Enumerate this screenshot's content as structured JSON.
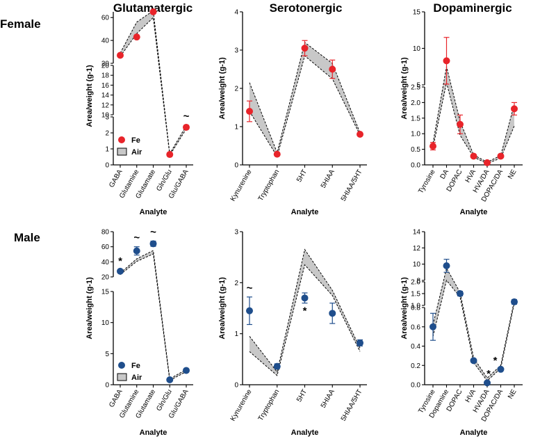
{
  "row_labels": {
    "female": "Female",
    "male": "Male"
  },
  "legend": {
    "fe": "Fe",
    "air": "Air"
  },
  "colors": {
    "female": "#e8242a",
    "male": "#1f4e8c",
    "band": "#c8c8c8",
    "axis": "#000000"
  },
  "chart_data": [
    {
      "id": "f-glut",
      "type": "scatter",
      "row": "female",
      "title": "Glutamatergic",
      "xlabel": "Analyte",
      "ylabel": "Area/weight (g-1)",
      "categories": [
        "GABA",
        "Glutamine",
        "Glutamate",
        "Gln/Glu",
        "Glu/GABA"
      ],
      "segments": [
        {
          "ylim": [
            0,
            3
          ],
          "ticks": [
            "0",
            "1",
            "2",
            "3"
          ]
        },
        {
          "ylim": [
            10,
            20
          ],
          "ticks": [
            "10",
            "12",
            "14",
            "16",
            "18",
            "20"
          ]
        },
        {
          "ylim": [
            20,
            65
          ],
          "ticks": [
            "20",
            "40",
            "60"
          ]
        }
      ],
      "fe": {
        "values": [
          27,
          43,
          65,
          0.65,
          2.35
        ],
        "err": [
          0,
          0,
          0,
          0.1,
          0.12
        ]
      },
      "air": {
        "lower": [
          26,
          46,
          60,
          0.6,
          2.25
        ],
        "upper": [
          29,
          56,
          66,
          0.7,
          2.45
        ]
      },
      "annotations": [
        {
          "text": "~",
          "index": 4
        }
      ],
      "legend_visible": true
    },
    {
      "id": "f-sero",
      "type": "scatter",
      "row": "female",
      "title": "Serotonergic",
      "xlabel": "Analyte",
      "ylabel": "Area/weight (g-1)",
      "categories": [
        "Kynurenine",
        "Tryptophan",
        "5HT",
        "5HIAA",
        "5HIAA/5HT"
      ],
      "segments": [
        {
          "ylim": [
            0,
            4
          ],
          "ticks": [
            "0",
            "1",
            "2",
            "3",
            "4"
          ]
        }
      ],
      "fe": {
        "values": [
          1.4,
          0.28,
          3.05,
          2.5,
          0.8
        ],
        "err": [
          0.27,
          0,
          0.2,
          0.24,
          0
        ]
      },
      "air": {
        "lower": [
          1.4,
          0.22,
          2.85,
          2.25,
          0.78
        ],
        "upper": [
          2.15,
          0.32,
          3.2,
          2.65,
          0.84
        ]
      },
      "annotations": [],
      "legend_visible": false
    },
    {
      "id": "f-dopa",
      "type": "scatter",
      "row": "female",
      "title": "Dopaminergic",
      "xlabel": "Analyte",
      "ylabel": "Area/weight (g-1)",
      "categories": [
        "Tyrosine",
        "DA",
        "DOPAC",
        "HVA",
        "HVA/DA",
        "DOPAC/DA",
        "NE"
      ],
      "segments": [
        {
          "ylim": [
            0,
            2.5
          ],
          "ticks": [
            "0.0",
            "0.5",
            "1.0",
            "1.5",
            "2.0",
            "2.5"
          ]
        },
        {
          "ylim": [
            5,
            15
          ],
          "ticks": [
            "5",
            "10",
            "15"
          ]
        }
      ],
      "fe": {
        "values": [
          0.6,
          8.3,
          1.3,
          0.28,
          0.07,
          0.28,
          1.8
        ],
        "err": [
          0.12,
          3.2,
          0.3,
          0,
          0,
          0,
          0.2
        ]
      },
      "air": {
        "lower": [
          0.55,
          5.3,
          0.95,
          0.25,
          0.04,
          0.22,
          1.25
        ],
        "upper": [
          0.7,
          7.5,
          1.4,
          0.32,
          0.09,
          0.3,
          1.95
        ]
      },
      "annotations": [],
      "legend_visible": false
    },
    {
      "id": "m-glut",
      "type": "scatter",
      "row": "male",
      "title": "",
      "xlabel": "Analyte",
      "ylabel": "Area/weight (g-1)",
      "categories": [
        "GABA",
        "Glutamine",
        "Glutamate",
        "Gln/Glu",
        "Glu/GABA"
      ],
      "segments": [
        {
          "ylim": [
            0,
            15
          ],
          "ticks": [
            "0",
            "5",
            "10",
            "15"
          ]
        },
        {
          "ylim": [
            20,
            80
          ],
          "ticks": [
            "20",
            "40",
            "60",
            "80"
          ]
        }
      ],
      "fe": {
        "values": [
          27.5,
          54.5,
          64,
          0.8,
          2.3
        ],
        "err": [
          0,
          5.5,
          3.5,
          0,
          0
        ]
      },
      "air": {
        "lower": [
          23,
          40.5,
          50.5,
          0.7,
          2.1
        ],
        "upper": [
          25,
          44,
          55,
          0.95,
          2.45
        ]
      },
      "annotations": [
        {
          "text": "*",
          "index": 0
        },
        {
          "text": "~",
          "index": 1
        },
        {
          "text": "~",
          "index": 2
        }
      ],
      "legend_visible": true
    },
    {
      "id": "m-sero",
      "type": "scatter",
      "row": "male",
      "title": "",
      "xlabel": "Analyte",
      "ylabel": "Area/weight (g-1)",
      "categories": [
        "Kynurenine",
        "Tryptophan",
        "5HT",
        "5HIAA",
        "5HIAA/5HT"
      ],
      "segments": [
        {
          "ylim": [
            0,
            3
          ],
          "ticks": [
            "0",
            "1",
            "2",
            "3"
          ]
        }
      ],
      "fe": {
        "values": [
          1.45,
          0.36,
          1.7,
          1.4,
          0.82
        ],
        "err": [
          0.27,
          0.05,
          0.1,
          0.2,
          0.06
        ]
      },
      "air": {
        "lower": [
          0.65,
          0.18,
          2.35,
          1.75,
          0.65
        ],
        "upper": [
          0.95,
          0.25,
          2.65,
          1.85,
          0.72
        ]
      },
      "annotations": [
        {
          "text": "~",
          "index": 0
        },
        {
          "text": "*",
          "index": 2
        }
      ],
      "legend_visible": false
    },
    {
      "id": "m-dopa",
      "type": "scatter",
      "row": "male",
      "title": "",
      "xlabel": "Analyte",
      "ylabel": "Area/weight (g-1)",
      "categories": [
        "Tyrosine",
        "Dopamine",
        "DOPAC",
        "HVA",
        "HVA/DA",
        "DOPAC/DA",
        "NE"
      ],
      "segments": [
        {
          "ylim": [
            0,
            0.8
          ],
          "ticks": [
            "0.0",
            "0.2",
            "0.4",
            "0.6",
            "0.8"
          ]
        },
        {
          "ylim": [
            1,
            2
          ],
          "ticks": [
            "1.0",
            "1.5",
            "2.0"
          ]
        },
        {
          "ylim": [
            8,
            14
          ],
          "ticks": [
            "8",
            "10",
            "12",
            "14"
          ]
        }
      ],
      "fe": {
        "values": [
          0.6,
          9.8,
          1.5,
          0.25,
          0.02,
          0.16,
          1.15
        ],
        "err": [
          0.14,
          0.8,
          0.1,
          0,
          0,
          0,
          0.1
        ]
      },
      "air": {
        "lower": [
          0.5,
          8.0,
          1.35,
          0.23,
          0.04,
          0.17,
          1.1
        ],
        "upper": [
          0.62,
          9.5,
          1.55,
          0.28,
          0.07,
          0.2,
          1.2
        ]
      },
      "annotations": [
        {
          "text": "*",
          "index": 4
        },
        {
          "text": "*",
          "index": 5
        }
      ],
      "legend_visible": false
    }
  ]
}
